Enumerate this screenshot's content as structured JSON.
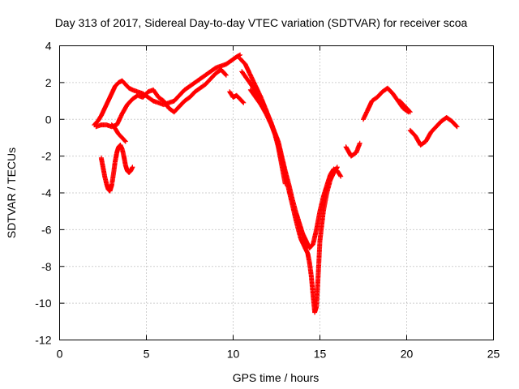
{
  "chart_data": {
    "type": "scatter",
    "title": "Day 313 of 2017, Sidereal Day-to-day VTEC variation (SDTVAR) for receiver scoa",
    "xlabel": "GPS time / hours",
    "ylabel": "SDTVAR / TECUs",
    "xlim": [
      0,
      25
    ],
    "ylim": [
      -12,
      4
    ],
    "xticks": [
      "0",
      "5",
      "10",
      "15",
      "20",
      "25"
    ],
    "yticks": [
      "4",
      "2",
      "0",
      "-2",
      "-4",
      "-6",
      "-8",
      "-10",
      "-12"
    ],
    "grid": true,
    "marker": "plus",
    "color": "#ff0000",
    "series": [
      {
        "x": [
          2.0,
          2.2,
          2.4,
          2.6,
          2.8,
          3.0,
          3.2,
          3.4,
          3.6,
          3.8,
          4.0,
          4.2,
          4.5,
          4.8,
          5.1,
          5.4,
          5.7,
          6.0,
          6.3,
          6.6,
          6.9,
          7.2,
          7.5,
          7.8,
          8.1,
          8.4,
          8.7,
          9.0,
          9.3,
          9.6,
          9.9,
          10.2,
          10.4
        ],
        "y": [
          -0.3,
          -0.1,
          0.2,
          0.6,
          1.0,
          1.4,
          1.8,
          2.0,
          2.1,
          1.9,
          1.7,
          1.6,
          1.5,
          1.4,
          1.2,
          1.0,
          0.9,
          0.8,
          0.9,
          1.0,
          1.3,
          1.6,
          1.8,
          2.0,
          2.2,
          2.4,
          2.6,
          2.8,
          2.9,
          3.0,
          3.2,
          3.4,
          3.5
        ]
      },
      {
        "x": [
          2.1,
          2.4,
          2.7,
          3.0,
          3.3,
          3.6,
          3.9,
          4.2,
          4.5,
          4.8,
          5.1,
          5.4,
          5.7,
          6.0,
          6.3,
          6.6,
          6.9,
          7.2,
          7.5,
          7.8,
          8.1,
          8.4,
          8.7,
          9.0,
          9.3,
          9.6
        ],
        "y": [
          -0.4,
          -0.3,
          -0.3,
          -0.4,
          -0.3,
          0.3,
          0.8,
          1.1,
          1.3,
          1.2,
          1.5,
          1.6,
          1.2,
          1.0,
          0.6,
          0.4,
          0.7,
          1.0,
          1.2,
          1.5,
          1.7,
          1.9,
          2.2,
          2.5,
          2.7,
          2.4
        ]
      },
      {
        "x": [
          2.4,
          2.5,
          2.6,
          2.7,
          2.8,
          2.9,
          3.0,
          3.1,
          3.2,
          3.3,
          3.4,
          3.5,
          3.6,
          3.7,
          3.8,
          3.9,
          4.0,
          4.1,
          4.2
        ],
        "y": [
          -2.1,
          -2.6,
          -3.1,
          -3.5,
          -3.8,
          -3.9,
          -3.6,
          -3.0,
          -2.3,
          -1.8,
          -1.5,
          -1.4,
          -1.6,
          -2.0,
          -2.5,
          -2.8,
          -2.9,
          -2.8,
          -2.6
        ]
      },
      {
        "x": [
          3.0,
          3.2,
          3.4,
          3.6,
          3.8
        ],
        "y": [
          -0.3,
          -0.5,
          -0.8,
          -1.0,
          -1.2
        ]
      },
      {
        "x": [
          9.8,
          10.0,
          10.2,
          10.4,
          10.6
        ],
        "y": [
          1.5,
          1.2,
          1.3,
          1.1,
          0.9
        ]
      },
      {
        "x": [
          10.4,
          10.7,
          11.0,
          11.3,
          11.6,
          11.9,
          12.2,
          12.5,
          12.7,
          12.9,
          13.1,
          13.3,
          13.5,
          13.7,
          13.9,
          14.1,
          14.3,
          14.4,
          14.5,
          14.6,
          14.7,
          14.8,
          14.9,
          15.0,
          15.2,
          15.4,
          15.6,
          15.8,
          16.0
        ],
        "y": [
          3.3,
          3.0,
          2.4,
          1.8,
          1.2,
          0.5,
          -0.2,
          -1.0,
          -1.8,
          -2.6,
          -3.4,
          -4.2,
          -5.0,
          -5.8,
          -6.5,
          -6.9,
          -7.3,
          -7.8,
          -8.5,
          -9.5,
          -10.5,
          -10.2,
          -8.5,
          -6.6,
          -5.0,
          -4.0,
          -3.3,
          -2.9,
          -2.6
        ]
      },
      {
        "x": [
          10.5,
          10.8,
          11.1,
          11.4,
          11.7,
          12.0,
          12.3,
          12.6,
          12.8,
          13.0,
          13.2,
          13.4,
          13.6,
          13.8,
          14.0,
          14.2,
          14.4,
          14.6,
          14.8,
          15.0,
          15.2,
          15.4,
          15.6,
          15.8,
          16.0,
          16.2
        ],
        "y": [
          2.6,
          2.2,
          1.8,
          1.4,
          0.8,
          0.2,
          -0.5,
          -1.2,
          -2.0,
          -2.8,
          -3.5,
          -4.3,
          -5.0,
          -5.6,
          -6.2,
          -6.6,
          -7.0,
          -6.8,
          -6.0,
          -5.0,
          -4.2,
          -3.6,
          -3.0,
          -2.7,
          -2.8,
          -3.1
        ]
      },
      {
        "x": [
          11.0,
          11.3,
          11.6,
          11.9,
          12.2,
          12.4,
          12.6,
          12.8,
          13.0
        ],
        "y": [
          1.6,
          1.2,
          0.8,
          0.3,
          -0.3,
          -0.8,
          -1.5,
          -2.5,
          -3.5
        ]
      },
      {
        "x": [
          16.5,
          16.8,
          17.1,
          17.3
        ],
        "y": [
          -1.5,
          -2.0,
          -1.8,
          -1.3
        ]
      },
      {
        "x": [
          17.5,
          17.8,
          18.0,
          18.3,
          18.6,
          18.9,
          19.2,
          19.5,
          19.8,
          20.1
        ],
        "y": [
          0.0,
          0.6,
          1.0,
          1.2,
          1.5,
          1.7,
          1.4,
          1.0,
          0.6,
          0.4
        ]
      },
      {
        "x": [
          19.6,
          19.8,
          20.0,
          20.2
        ],
        "y": [
          1.0,
          0.8,
          0.6,
          0.4
        ]
      },
      {
        "x": [
          20.2,
          20.5,
          20.8,
          21.1,
          21.4,
          21.7,
          22.0,
          22.3,
          22.6,
          22.9
        ],
        "y": [
          -0.6,
          -0.9,
          -1.4,
          -1.2,
          -0.7,
          -0.4,
          -0.1,
          0.1,
          -0.1,
          -0.4
        ]
      }
    ]
  }
}
